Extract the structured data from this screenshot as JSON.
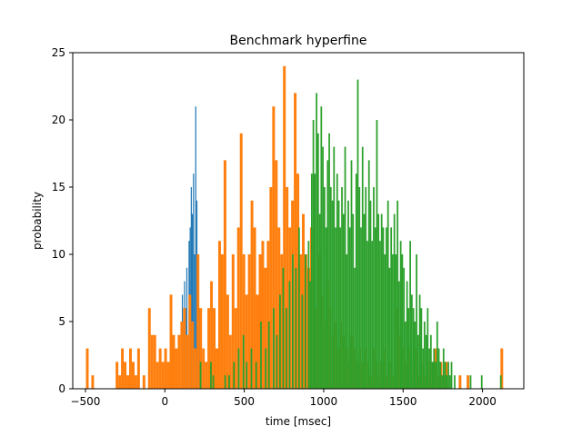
{
  "chart_data": {
    "type": "histogram",
    "title": "Benchmark hyperfine",
    "xlabel": "time [msec]",
    "ylabel": "probability",
    "xlim": [
      -580,
      2260
    ],
    "ylim": [
      0,
      25
    ],
    "xticks": [
      -500,
      0,
      500,
      1000,
      1500,
      2000
    ],
    "yticks": [
      0,
      5,
      10,
      15,
      20,
      25
    ],
    "grid": false,
    "legend": "none",
    "series": [
      {
        "color": "#1f77b4",
        "bin_width": 7,
        "bins": [
          {
            "x": 100,
            "y": 4
          },
          {
            "x": 107,
            "y": 7
          },
          {
            "x": 114,
            "y": 5
          },
          {
            "x": 121,
            "y": 8
          },
          {
            "x": 128,
            "y": 6
          },
          {
            "x": 135,
            "y": 9
          },
          {
            "x": 142,
            "y": 4
          },
          {
            "x": 149,
            "y": 11
          },
          {
            "x": 156,
            "y": 12
          },
          {
            "x": 163,
            "y": 15
          },
          {
            "x": 170,
            "y": 13
          },
          {
            "x": 177,
            "y": 16
          },
          {
            "x": 184,
            "y": 10
          },
          {
            "x": 191,
            "y": 21
          },
          {
            "x": 198,
            "y": 14
          },
          {
            "x": 205,
            "y": 9
          },
          {
            "x": 212,
            "y": 6
          },
          {
            "x": 219,
            "y": 4
          }
        ]
      },
      {
        "color": "#ff7f0e",
        "bin_width": 17,
        "bins": [
          {
            "x": -497,
            "y": 3
          },
          {
            "x": -463,
            "y": 1
          },
          {
            "x": -310,
            "y": 2
          },
          {
            "x": -293,
            "y": 1
          },
          {
            "x": -276,
            "y": 3
          },
          {
            "x": -259,
            "y": 2
          },
          {
            "x": -242,
            "y": 1
          },
          {
            "x": -225,
            "y": 3
          },
          {
            "x": -208,
            "y": 2
          },
          {
            "x": -191,
            "y": 1
          },
          {
            "x": -174,
            "y": 3
          },
          {
            "x": -140,
            "y": 1
          },
          {
            "x": -106,
            "y": 6
          },
          {
            "x": -89,
            "y": 4
          },
          {
            "x": -72,
            "y": 4
          },
          {
            "x": -55,
            "y": 2
          },
          {
            "x": -38,
            "y": 3
          },
          {
            "x": -21,
            "y": 2
          },
          {
            "x": -4,
            "y": 3
          },
          {
            "x": 13,
            "y": 2
          },
          {
            "x": 30,
            "y": 7
          },
          {
            "x": 47,
            "y": 4
          },
          {
            "x": 64,
            "y": 3
          },
          {
            "x": 81,
            "y": 4
          },
          {
            "x": 98,
            "y": 5
          },
          {
            "x": 115,
            "y": 6
          },
          {
            "x": 132,
            "y": 4
          },
          {
            "x": 149,
            "y": 7
          },
          {
            "x": 166,
            "y": 5
          },
          {
            "x": 183,
            "y": 3
          },
          {
            "x": 200,
            "y": 10
          },
          {
            "x": 217,
            "y": 6
          },
          {
            "x": 234,
            "y": 3
          },
          {
            "x": 251,
            "y": 2
          },
          {
            "x": 268,
            "y": 6
          },
          {
            "x": 285,
            "y": 8
          },
          {
            "x": 302,
            "y": 6
          },
          {
            "x": 319,
            "y": 3
          },
          {
            "x": 336,
            "y": 11
          },
          {
            "x": 353,
            "y": 10
          },
          {
            "x": 370,
            "y": 17
          },
          {
            "x": 387,
            "y": 7
          },
          {
            "x": 404,
            "y": 4
          },
          {
            "x": 421,
            "y": 10
          },
          {
            "x": 438,
            "y": 6
          },
          {
            "x": 455,
            "y": 12
          },
          {
            "x": 472,
            "y": 19
          },
          {
            "x": 489,
            "y": 10
          },
          {
            "x": 506,
            "y": 7
          },
          {
            "x": 523,
            "y": 10
          },
          {
            "x": 540,
            "y": 14
          },
          {
            "x": 557,
            "y": 12
          },
          {
            "x": 574,
            "y": 7
          },
          {
            "x": 591,
            "y": 10
          },
          {
            "x": 608,
            "y": 11
          },
          {
            "x": 625,
            "y": 9
          },
          {
            "x": 642,
            "y": 11
          },
          {
            "x": 659,
            "y": 15
          },
          {
            "x": 676,
            "y": 21
          },
          {
            "x": 693,
            "y": 17
          },
          {
            "x": 710,
            "y": 12
          },
          {
            "x": 727,
            "y": 10
          },
          {
            "x": 744,
            "y": 24
          },
          {
            "x": 761,
            "y": 15
          },
          {
            "x": 778,
            "y": 12
          },
          {
            "x": 795,
            "y": 14
          },
          {
            "x": 812,
            "y": 22
          },
          {
            "x": 829,
            "y": 16
          },
          {
            "x": 846,
            "y": 10
          },
          {
            "x": 863,
            "y": 13
          },
          {
            "x": 880,
            "y": 10
          },
          {
            "x": 897,
            "y": 9
          },
          {
            "x": 914,
            "y": 12
          },
          {
            "x": 931,
            "y": 8
          },
          {
            "x": 948,
            "y": 6
          },
          {
            "x": 965,
            "y": 10
          },
          {
            "x": 982,
            "y": 7
          },
          {
            "x": 999,
            "y": 5
          },
          {
            "x": 1016,
            "y": 8
          },
          {
            "x": 1033,
            "y": 6
          },
          {
            "x": 1050,
            "y": 4
          },
          {
            "x": 1067,
            "y": 5
          },
          {
            "x": 1084,
            "y": 3
          },
          {
            "x": 1101,
            "y": 5
          },
          {
            "x": 1118,
            "y": 4
          },
          {
            "x": 1135,
            "y": 3
          },
          {
            "x": 1152,
            "y": 2
          },
          {
            "x": 1169,
            "y": 4
          },
          {
            "x": 1186,
            "y": 3
          },
          {
            "x": 1203,
            "y": 2
          },
          {
            "x": 1220,
            "y": 3
          },
          {
            "x": 1237,
            "y": 2
          },
          {
            "x": 1254,
            "y": 3
          },
          {
            "x": 1271,
            "y": 2
          },
          {
            "x": 1288,
            "y": 1
          },
          {
            "x": 1305,
            "y": 3
          },
          {
            "x": 1322,
            "y": 2
          },
          {
            "x": 1339,
            "y": 1
          },
          {
            "x": 1356,
            "y": 2
          },
          {
            "x": 1373,
            "y": 3
          },
          {
            "x": 1390,
            "y": 1
          },
          {
            "x": 1407,
            "y": 2
          },
          {
            "x": 1424,
            "y": 1
          },
          {
            "x": 1441,
            "y": 2
          },
          {
            "x": 1458,
            "y": 6
          },
          {
            "x": 1475,
            "y": 4
          },
          {
            "x": 1492,
            "y": 3
          },
          {
            "x": 1509,
            "y": 2
          },
          {
            "x": 1526,
            "y": 3
          },
          {
            "x": 1543,
            "y": 1
          },
          {
            "x": 1560,
            "y": 2
          },
          {
            "x": 1577,
            "y": 3
          },
          {
            "x": 1594,
            "y": 1
          },
          {
            "x": 1611,
            "y": 2
          },
          {
            "x": 1628,
            "y": 1
          },
          {
            "x": 1645,
            "y": 2
          },
          {
            "x": 1662,
            "y": 1
          },
          {
            "x": 1679,
            "y": 2
          },
          {
            "x": 1696,
            "y": 3
          },
          {
            "x": 1713,
            "y": 1
          },
          {
            "x": 1730,
            "y": 2
          },
          {
            "x": 1747,
            "y": 1
          },
          {
            "x": 1764,
            "y": 2
          },
          {
            "x": 1850,
            "y": 1
          },
          {
            "x": 1900,
            "y": 1
          },
          {
            "x": 2113,
            "y": 3
          }
        ]
      },
      {
        "color": "#2ca02c",
        "bin_width": 10,
        "bins": [
          {
            "x": 220,
            "y": 2
          },
          {
            "x": 285,
            "y": 2
          },
          {
            "x": 300,
            "y": 1
          },
          {
            "x": 375,
            "y": 1
          },
          {
            "x": 400,
            "y": 1
          },
          {
            "x": 430,
            "y": 2
          },
          {
            "x": 460,
            "y": 3
          },
          {
            "x": 490,
            "y": 4
          },
          {
            "x": 510,
            "y": 2
          },
          {
            "x": 540,
            "y": 3
          },
          {
            "x": 570,
            "y": 2
          },
          {
            "x": 600,
            "y": 5
          },
          {
            "x": 630,
            "y": 3
          },
          {
            "x": 650,
            "y": 5
          },
          {
            "x": 680,
            "y": 6
          },
          {
            "x": 700,
            "y": 4
          },
          {
            "x": 720,
            "y": 7
          },
          {
            "x": 740,
            "y": 9
          },
          {
            "x": 760,
            "y": 6
          },
          {
            "x": 780,
            "y": 8
          },
          {
            "x": 800,
            "y": 10
          },
          {
            "x": 820,
            "y": 9
          },
          {
            "x": 840,
            "y": 12
          },
          {
            "x": 860,
            "y": 7
          },
          {
            "x": 880,
            "y": 10
          },
          {
            "x": 900,
            "y": 11
          },
          {
            "x": 910,
            "y": 8
          },
          {
            "x": 920,
            "y": 16
          },
          {
            "x": 930,
            "y": 20
          },
          {
            "x": 940,
            "y": 16
          },
          {
            "x": 950,
            "y": 22
          },
          {
            "x": 960,
            "y": 19
          },
          {
            "x": 970,
            "y": 13
          },
          {
            "x": 980,
            "y": 21
          },
          {
            "x": 990,
            "y": 18
          },
          {
            "x": 1000,
            "y": 15
          },
          {
            "x": 1010,
            "y": 12
          },
          {
            "x": 1020,
            "y": 17
          },
          {
            "x": 1030,
            "y": 19
          },
          {
            "x": 1040,
            "y": 15
          },
          {
            "x": 1050,
            "y": 14
          },
          {
            "x": 1060,
            "y": 18
          },
          {
            "x": 1070,
            "y": 12
          },
          {
            "x": 1080,
            "y": 16
          },
          {
            "x": 1090,
            "y": 14
          },
          {
            "x": 1100,
            "y": 12
          },
          {
            "x": 1110,
            "y": 15
          },
          {
            "x": 1120,
            "y": 13
          },
          {
            "x": 1130,
            "y": 18
          },
          {
            "x": 1140,
            "y": 10
          },
          {
            "x": 1150,
            "y": 14
          },
          {
            "x": 1160,
            "y": 12
          },
          {
            "x": 1170,
            "y": 17
          },
          {
            "x": 1180,
            "y": 13
          },
          {
            "x": 1190,
            "y": 9
          },
          {
            "x": 1200,
            "y": 16
          },
          {
            "x": 1210,
            "y": 23
          },
          {
            "x": 1220,
            "y": 15
          },
          {
            "x": 1230,
            "y": 12
          },
          {
            "x": 1240,
            "y": 18
          },
          {
            "x": 1250,
            "y": 13
          },
          {
            "x": 1260,
            "y": 15
          },
          {
            "x": 1270,
            "y": 11
          },
          {
            "x": 1280,
            "y": 17
          },
          {
            "x": 1290,
            "y": 14
          },
          {
            "x": 1300,
            "y": 11
          },
          {
            "x": 1310,
            "y": 15
          },
          {
            "x": 1320,
            "y": 12
          },
          {
            "x": 1330,
            "y": 20
          },
          {
            "x": 1340,
            "y": 13
          },
          {
            "x": 1350,
            "y": 11
          },
          {
            "x": 1360,
            "y": 13
          },
          {
            "x": 1370,
            "y": 12
          },
          {
            "x": 1380,
            "y": 10
          },
          {
            "x": 1390,
            "y": 12
          },
          {
            "x": 1400,
            "y": 14
          },
          {
            "x": 1410,
            "y": 9
          },
          {
            "x": 1420,
            "y": 12
          },
          {
            "x": 1430,
            "y": 10
          },
          {
            "x": 1440,
            "y": 13
          },
          {
            "x": 1450,
            "y": 10
          },
          {
            "x": 1460,
            "y": 14
          },
          {
            "x": 1470,
            "y": 8
          },
          {
            "x": 1480,
            "y": 11
          },
          {
            "x": 1490,
            "y": 10
          },
          {
            "x": 1500,
            "y": 9
          },
          {
            "x": 1510,
            "y": 5
          },
          {
            "x": 1520,
            "y": 8
          },
          {
            "x": 1530,
            "y": 6
          },
          {
            "x": 1540,
            "y": 11
          },
          {
            "x": 1550,
            "y": 7
          },
          {
            "x": 1560,
            "y": 6
          },
          {
            "x": 1570,
            "y": 5
          },
          {
            "x": 1580,
            "y": 10
          },
          {
            "x": 1590,
            "y": 4
          },
          {
            "x": 1600,
            "y": 7
          },
          {
            "x": 1610,
            "y": 6
          },
          {
            "x": 1620,
            "y": 3
          },
          {
            "x": 1630,
            "y": 5
          },
          {
            "x": 1640,
            "y": 4
          },
          {
            "x": 1650,
            "y": 6
          },
          {
            "x": 1660,
            "y": 3
          },
          {
            "x": 1670,
            "y": 4
          },
          {
            "x": 1680,
            "y": 2
          },
          {
            "x": 1690,
            "y": 3
          },
          {
            "x": 1700,
            "y": 2
          },
          {
            "x": 1710,
            "y": 5
          },
          {
            "x": 1720,
            "y": 3
          },
          {
            "x": 1730,
            "y": 2
          },
          {
            "x": 1740,
            "y": 1
          },
          {
            "x": 1750,
            "y": 3
          },
          {
            "x": 1760,
            "y": 2
          },
          {
            "x": 1770,
            "y": 1
          },
          {
            "x": 1780,
            "y": 2
          },
          {
            "x": 1790,
            "y": 1
          },
          {
            "x": 1800,
            "y": 2
          },
          {
            "x": 1820,
            "y": 1
          },
          {
            "x": 1920,
            "y": 1
          },
          {
            "x": 1990,
            "y": 1
          },
          {
            "x": 2110,
            "y": 1
          }
        ]
      }
    ]
  }
}
